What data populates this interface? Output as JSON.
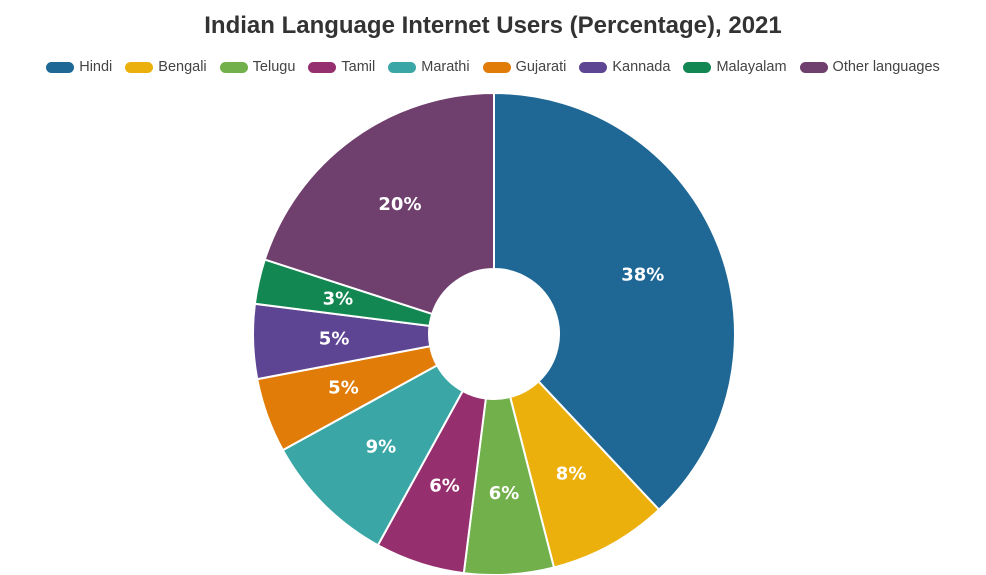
{
  "chart_data": {
    "type": "pie",
    "donut": true,
    "title": "Indian Language Internet Users (Percentage), 2021",
    "legend_position": "top",
    "slices": [
      {
        "label": "Hindi",
        "value": 38,
        "display": "38%",
        "color": "#1f6896"
      },
      {
        "label": "Bengali",
        "value": 8,
        "display": "8%",
        "color": "#ebb00c"
      },
      {
        "label": "Telugu",
        "value": 6,
        "display": "6%",
        "color": "#72b04b"
      },
      {
        "label": "Tamil",
        "value": 6,
        "display": "6%",
        "color": "#962f6e"
      },
      {
        "label": "Marathi",
        "value": 9,
        "display": "9%",
        "color": "#3aa6a6"
      },
      {
        "label": "Gujarati",
        "value": 5,
        "display": "5%",
        "color": "#e07c07"
      },
      {
        "label": "Kannada",
        "value": 5,
        "display": "5%",
        "color": "#5d4594"
      },
      {
        "label": "Malayalam",
        "value": 3,
        "display": "3%",
        "color": "#138752"
      },
      {
        "label": "Other languages",
        "value": 20,
        "display": "20%",
        "color": "#6f3f6e"
      }
    ]
  }
}
